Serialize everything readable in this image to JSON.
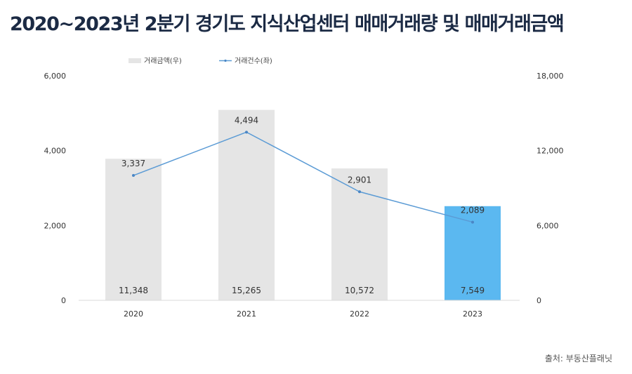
{
  "title": "2020~2023년 2분기 경기도 지식산업센터 매매거래량 및 매매거래금액",
  "source": "출처: 부동산플래닛",
  "chart_data": {
    "type": "bar+line",
    "title": "2020~2023년 2분기 경기도 지식산업센터 매매거래량 및 매매거래금액",
    "categories": [
      "2020",
      "2021",
      "2022",
      "2023"
    ],
    "series": [
      {
        "name": "거래금액(우)",
        "type": "bar",
        "axis": "right",
        "values": [
          11348,
          15265,
          10572,
          7549
        ],
        "labels": [
          "11,348",
          "15,265",
          "10,572",
          "7,549"
        ],
        "color": "#e5e5e5",
        "highlight_color": "#5bb8f0"
      },
      {
        "name": "거래건수(좌)",
        "type": "line",
        "axis": "left",
        "values": [
          3337,
          4494,
          2901,
          2089
        ],
        "labels": [
          "3,337",
          "4,494",
          "2,901",
          "2,089"
        ],
        "color": "#5b9bd5"
      }
    ],
    "left_axis": {
      "ylim": [
        0,
        6000
      ],
      "ticks": [
        "0",
        "2,000",
        "4,000",
        "6,000"
      ],
      "tick_values": [
        0,
        2000,
        4000,
        6000
      ]
    },
    "right_axis": {
      "ylim": [
        0,
        18000
      ],
      "ticks": [
        "0",
        "6,000",
        "12,000",
        "18,000"
      ],
      "tick_values": [
        0,
        6000,
        12000,
        18000
      ]
    },
    "legend_position": "top-left",
    "grid": false
  }
}
